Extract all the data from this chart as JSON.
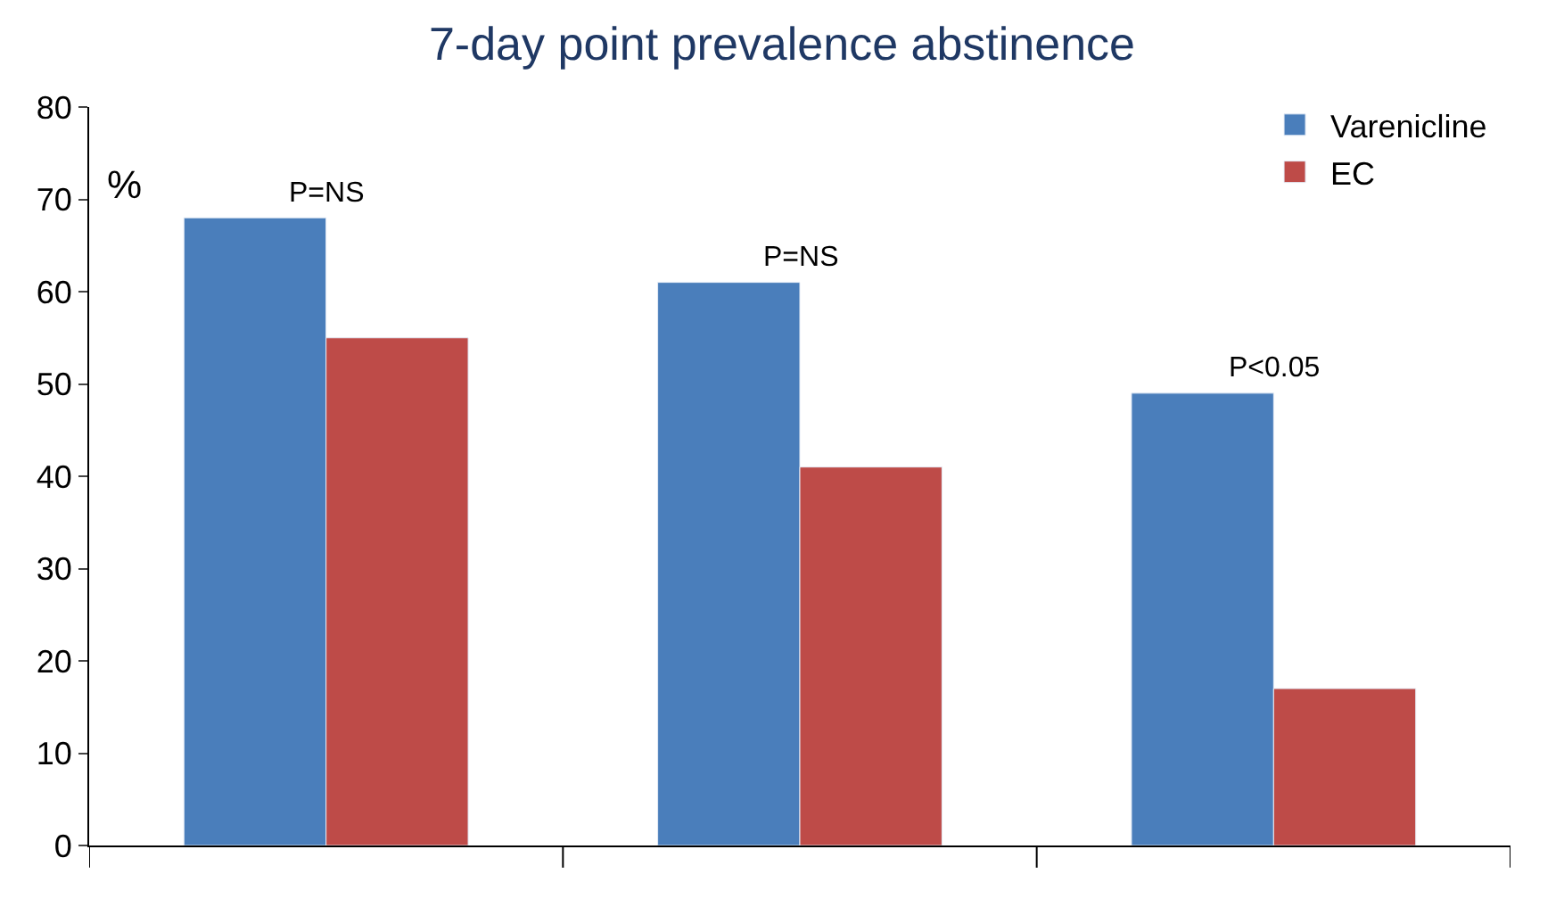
{
  "chart_data": {
    "type": "bar",
    "title": "7-day point prevalence abstinence",
    "ylabel": "%",
    "categories": [
      null,
      null,
      null
    ],
    "series": [
      {
        "name": "Varenicline",
        "color": "#4a7ebb",
        "values": [
          68,
          61,
          49
        ]
      },
      {
        "name": "EC",
        "color": "#be4b48",
        "values": [
          55,
          41,
          17
        ]
      }
    ],
    "annotations": [
      "P=NS",
      "P=NS",
      "P<0.05"
    ],
    "ylim": [
      0,
      80
    ],
    "yticks": [
      0,
      10,
      20,
      30,
      40,
      50,
      60,
      70,
      80
    ],
    "legend": "top right"
  }
}
